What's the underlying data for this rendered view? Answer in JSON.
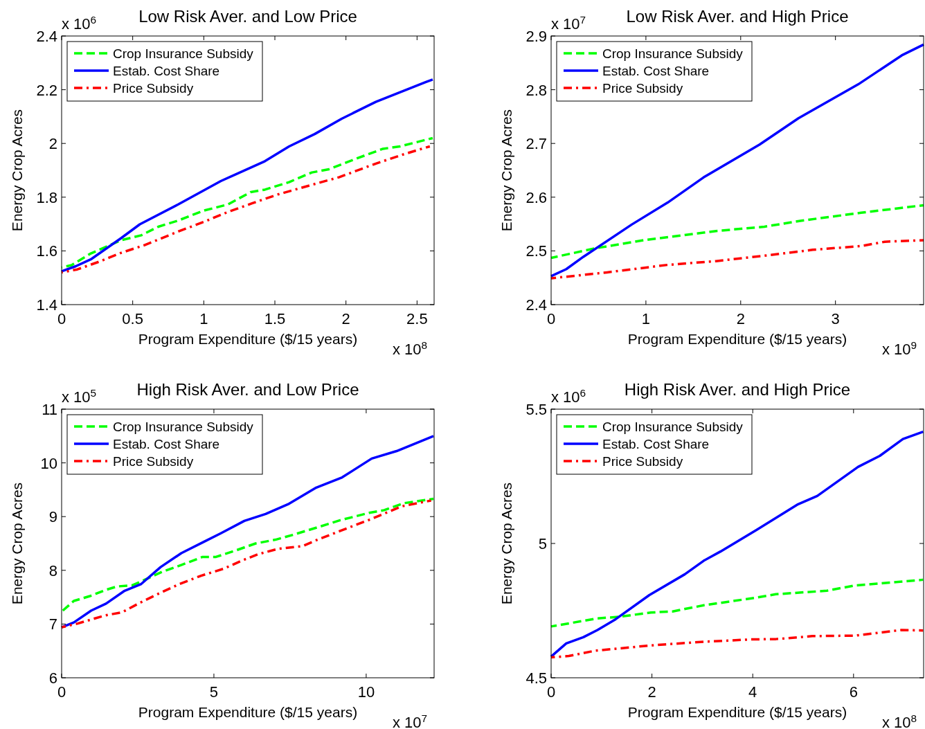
{
  "chart_data": [
    {
      "type": "line",
      "title": "Low Risk Aver. and Low Price",
      "xlabel": "Program Expenditure ($/15 years)",
      "ylabel": "Energy Crop Acres",
      "annotations": [
        "x 10$^{6}$",
        "x 10$^{8}$"
      ],
      "xlim": [
        0,
        2.62
      ],
      "xticks": [
        0,
        0.5,
        1,
        1.5,
        2,
        2.5
      ],
      "ylim": [
        1.4,
        2.4
      ],
      "yticks": [
        1.4,
        1.6,
        1.8,
        2,
        2.2,
        2.4
      ],
      "legend": "top left",
      "grid": false,
      "series": [
        {
          "name": "Crop Insurance Subsidy",
          "color": "#00ff00",
          "line_style": "dashed",
          "x": [
            0,
            0.07,
            0.2,
            0.42,
            0.56,
            0.68,
            0.82,
            1,
            1.17,
            1.33,
            1.43,
            1.6,
            1.76,
            1.88,
            2.07,
            2.26,
            2.38,
            2.61
          ],
          "values": [
            1.538,
            1.547,
            1.589,
            1.64,
            1.658,
            1.69,
            1.713,
            1.75,
            1.773,
            1.819,
            1.828,
            1.856,
            1.892,
            1.904,
            1.943,
            1.98,
            1.989,
            2.02
          ]
        },
        {
          "name": "Estab. Cost Share",
          "color": "#0000ff",
          "line_style": "solid",
          "x": [
            0,
            0.1,
            0.21,
            0.42,
            0.55,
            0.82,
            1.12,
            1.43,
            1.6,
            1.78,
            1.97,
            2.21,
            2.56,
            2.61
          ],
          "values": [
            1.524,
            1.543,
            1.57,
            1.648,
            1.699,
            1.773,
            1.86,
            1.934,
            1.989,
            2.035,
            2.092,
            2.155,
            2.228,
            2.238
          ]
        },
        {
          "name": "Price Subsidy",
          "color": "#ff0000",
          "line_style": "dashdot",
          "x": [
            0,
            0.11,
            0.27,
            0.42,
            0.58,
            0.82,
            1,
            1.17,
            1.34,
            1.52,
            1.78,
            1.95,
            2.21,
            2.42,
            2.59
          ],
          "values": [
            1.52,
            1.531,
            1.561,
            1.593,
            1.621,
            1.672,
            1.708,
            1.745,
            1.777,
            1.81,
            1.849,
            1.874,
            1.925,
            1.962,
            1.989
          ]
        }
      ]
    },
    {
      "type": "line",
      "title": "Low Risk Aver. and High Price",
      "xlabel": "Program Expenditure ($/15 years)",
      "ylabel": "Energy Crop Acres",
      "annotations": [
        "x 10$^{7}$",
        "x 10$^{9}$"
      ],
      "xlim": [
        0,
        3.93
      ],
      "xticks": [
        0,
        1,
        2,
        3
      ],
      "ylim": [
        2.4,
        2.9
      ],
      "yticks": [
        2.4,
        2.5,
        2.6,
        2.7,
        2.8,
        2.9
      ],
      "legend": "top left",
      "grid": false,
      "series": [
        {
          "name": "Crop Insurance Subsidy",
          "color": "#00ff00",
          "line_style": "dashed",
          "x": [
            0,
            0.47,
            0.98,
            1.74,
            2.25,
            2.63,
            3.27,
            3.93
          ],
          "values": [
            2.487,
            2.505,
            2.52,
            2.537,
            2.545,
            2.556,
            2.571,
            2.585
          ]
        },
        {
          "name": "Estab. Cost Share",
          "color": "#0000ff",
          "line_style": "solid",
          "x": [
            0,
            0.16,
            0.34,
            0.85,
            1.23,
            1.61,
            2.2,
            2.61,
            3.24,
            3.7,
            3.93
          ],
          "values": [
            2.453,
            2.466,
            2.489,
            2.549,
            2.59,
            2.637,
            2.698,
            2.747,
            2.81,
            2.864,
            2.884
          ]
        },
        {
          "name": "Price Subsidy",
          "color": "#ff0000",
          "line_style": "dashdot",
          "x": [
            0,
            0.59,
            1.23,
            1.74,
            2.25,
            2.76,
            3.27,
            3.52,
            3.93
          ],
          "values": [
            2.449,
            2.46,
            2.474,
            2.481,
            2.491,
            2.502,
            2.509,
            2.517,
            2.52
          ]
        }
      ]
    },
    {
      "type": "line",
      "title": "High Risk Aver. and Low Price",
      "xlabel": "Program Expenditure ($/15 years)",
      "ylabel": "Energy Crop Acres",
      "annotations": [
        "x 10$^{5}$",
        "x 10$^{7}$"
      ],
      "xlim": [
        0,
        12.23
      ],
      "xticks": [
        0,
        5,
        10
      ],
      "ylim": [
        6,
        11
      ],
      "yticks": [
        6,
        7,
        8,
        9,
        10,
        11
      ],
      "legend": "top left",
      "grid": false,
      "series": [
        {
          "name": "Crop Insurance Subsidy",
          "color": "#00ff00",
          "line_style": "dashed",
          "x": [
            0,
            0.4,
            0.93,
            1.42,
            1.82,
            2.31,
            2.6,
            3.29,
            3.93,
            4.63,
            5.07,
            5.72,
            6.37,
            7.02,
            7.59,
            8.4,
            9.13,
            10.1,
            10.59,
            11.24,
            12.21
          ],
          "values": [
            7.23,
            7.43,
            7.52,
            7.63,
            7.7,
            7.72,
            7.79,
            7.97,
            8.1,
            8.25,
            8.25,
            8.37,
            8.5,
            8.57,
            8.66,
            8.8,
            8.93,
            9.07,
            9.12,
            9.25,
            9.33
          ]
        },
        {
          "name": "Estab. Cost Share",
          "color": "#0000ff",
          "line_style": "solid",
          "x": [
            0,
            0.4,
            0.97,
            1.46,
            2.07,
            2.6,
            3.25,
            3.93,
            4.67,
            5.23,
            6,
            6.7,
            7.47,
            8.36,
            9.21,
            10.18,
            11,
            12.21
          ],
          "values": [
            6.94,
            7.03,
            7.25,
            7.38,
            7.62,
            7.74,
            8.06,
            8.32,
            8.53,
            8.69,
            8.92,
            9.05,
            9.24,
            9.54,
            9.73,
            10.08,
            10.22,
            10.5
          ]
        },
        {
          "name": "Price Subsidy",
          "color": "#ff0000",
          "line_style": "dashdot",
          "x": [
            0,
            0.53,
            1.42,
            1.99,
            2.55,
            3.2,
            3.85,
            4.58,
            5.32,
            5.96,
            6.45,
            7.1,
            7.91,
            8.4,
            9.13,
            10.1,
            11.16,
            12.13
          ],
          "values": [
            6.94,
            7.01,
            7.16,
            7.22,
            7.39,
            7.57,
            7.74,
            7.9,
            8.03,
            8.19,
            8.3,
            8.4,
            8.45,
            8.57,
            8.73,
            8.94,
            9.19,
            9.3
          ]
        }
      ]
    },
    {
      "type": "line",
      "title": "High Risk Aver. and High Price",
      "xlabel": "Program Expenditure ($/15 years)",
      "ylabel": "Energy Crop Acres",
      "annotations": [
        "x 10$^{6}$",
        "x 10$^{8}$"
      ],
      "xlim": [
        0,
        7.39
      ],
      "xticks": [
        0,
        2,
        4,
        6
      ],
      "ylim": [
        4.5,
        5.5
      ],
      "yticks": [
        4.5,
        5,
        5.5
      ],
      "legend": "top left",
      "grid": false,
      "series": [
        {
          "name": "Crop Insurance Subsidy",
          "color": "#00ff00",
          "line_style": "dashed",
          "x": [
            0,
            0.92,
            1.35,
            1.98,
            2.41,
            3.03,
            4.03,
            4.46,
            5.47,
            6.04,
            6.52,
            7.38
          ],
          "values": [
            4.691,
            4.721,
            4.727,
            4.743,
            4.747,
            4.77,
            4.797,
            4.811,
            4.824,
            4.844,
            4.851,
            4.865
          ]
        },
        {
          "name": "Estab. Cost Share",
          "color": "#0000ff",
          "line_style": "solid",
          "x": [
            0,
            0.3,
            0.64,
            0.92,
            1.28,
            1.95,
            2.65,
            3.03,
            3.36,
            4.08,
            4.9,
            5.28,
            6.09,
            6.52,
            6.98,
            7.38
          ],
          "values": [
            4.579,
            4.628,
            4.651,
            4.678,
            4.718,
            4.808,
            4.885,
            4.936,
            4.97,
            5.051,
            5.146,
            5.177,
            5.285,
            5.326,
            5.389,
            5.416
          ]
        },
        {
          "name": "Price Subsidy",
          "color": "#ff0000",
          "line_style": "dashdot",
          "x": [
            0,
            0.35,
            0.88,
            2.07,
            3.03,
            3.99,
            4.46,
            5.18,
            6.04,
            6.95,
            7.38
          ],
          "values": [
            4.576,
            4.581,
            4.601,
            4.622,
            4.634,
            4.643,
            4.644,
            4.655,
            4.657,
            4.678,
            4.676
          ]
        }
      ]
    }
  ]
}
